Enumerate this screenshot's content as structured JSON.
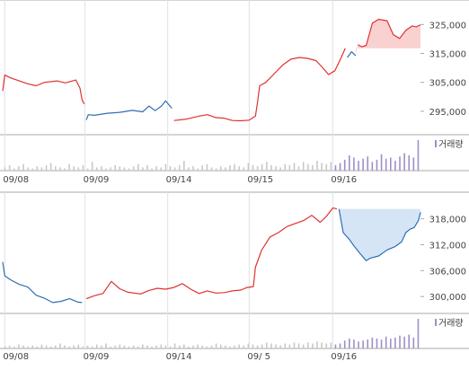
{
  "colors": {
    "up": "#e03131",
    "down": "#2f6fb3",
    "up_fill": "#f9c9c9",
    "down_fill": "#cfe0f5",
    "volume": "#c8c8c8",
    "volume_recent": "#9f8fc6",
    "grid": "#e2e2e2",
    "frame": "#aaaaaa"
  },
  "chart_data": [
    {
      "type": "line",
      "x_ticks": [
        "09/08",
        "09/09",
        "09/14",
        "09/15",
        "09/16"
      ],
      "y_ticks": [
        "325,000",
        "315,000",
        "305,000",
        "295,000"
      ],
      "y_tick_values": [
        325000,
        315000,
        305000,
        295000
      ],
      "ylim": [
        287500,
        331000
      ],
      "volume_label": "거래량",
      "series": [
        {
          "color": "up",
          "points": [
            [
              0.0,
              302000
            ],
            [
              0.005,
              307500
            ],
            [
              0.02,
              306500
            ],
            [
              0.04,
              305500
            ],
            [
              0.06,
              304500
            ],
            [
              0.08,
              303800
            ],
            [
              0.1,
              305000
            ],
            [
              0.13,
              305500
            ],
            [
              0.15,
              304800
            ],
            [
              0.175,
              305800
            ],
            [
              0.185,
              303000
            ],
            [
              0.19,
              299000
            ],
            [
              0.195,
              297500
            ]
          ]
        },
        {
          "color": "down",
          "points": [
            [
              0.2,
              292000
            ],
            [
              0.205,
              293800
            ],
            [
              0.22,
              293600
            ],
            [
              0.25,
              294300
            ],
            [
              0.28,
              294600
            ],
            [
              0.31,
              295300
            ],
            [
              0.335,
              294800
            ],
            [
              0.35,
              296800
            ],
            [
              0.365,
              295200
            ],
            [
              0.38,
              296800
            ],
            [
              0.39,
              298600
            ],
            [
              0.405,
              296000
            ]
          ]
        },
        {
          "color": "up",
          "points": [
            [
              0.41,
              291800
            ],
            [
              0.44,
              292300
            ],
            [
              0.47,
              293300
            ],
            [
              0.49,
              293800
            ],
            [
              0.51,
              292800
            ],
            [
              0.53,
              292600
            ],
            [
              0.55,
              291800
            ],
            [
              0.57,
              291700
            ],
            [
              0.59,
              291900
            ],
            [
              0.605,
              293300
            ],
            [
              0.61,
              298000
            ],
            [
              0.615,
              303800
            ],
            [
              0.63,
              305000
            ],
            [
              0.65,
              308000
            ],
            [
              0.67,
              311000
            ],
            [
              0.69,
              313000
            ],
            [
              0.71,
              313600
            ],
            [
              0.73,
              313300
            ],
            [
              0.75,
              312500
            ],
            [
              0.765,
              310200
            ],
            [
              0.78,
              307700
            ],
            [
              0.795,
              309000
            ],
            [
              0.81,
              313500
            ],
            [
              0.82,
              316800
            ]
          ]
        },
        {
          "color": "down",
          "points": [
            [
              0.825,
              313600
            ],
            [
              0.835,
              315600
            ],
            [
              0.845,
              314200
            ]
          ]
        },
        {
          "color": "up",
          "points": [
            [
              0.85,
              318000
            ],
            [
              0.86,
              317300
            ],
            [
              0.87,
              317800
            ],
            [
              0.885,
              325500
            ],
            [
              0.9,
              326800
            ],
            [
              0.92,
              326300
            ],
            [
              0.935,
              321500
            ],
            [
              0.95,
              320200
            ],
            [
              0.965,
              323000
            ],
            [
              0.98,
              324500
            ],
            [
              0.99,
              324200
            ],
            [
              1.0,
              324900
            ]
          ]
        }
      ],
      "shade": {
        "color": "up_fill",
        "from_x": 0.838,
        "base_y": 316800
      },
      "volume": [
        3,
        5,
        2,
        4,
        6,
        3,
        2,
        4,
        3,
        5,
        7,
        4,
        3,
        2,
        6,
        4,
        3,
        5,
        2,
        8,
        3,
        4,
        2,
        3,
        5,
        4,
        3,
        2,
        4,
        6,
        3,
        5,
        2,
        4,
        3,
        6,
        4,
        3,
        5,
        9,
        3,
        4,
        2,
        5,
        6,
        3,
        2,
        4,
        3,
        5,
        6,
        4,
        3,
        7,
        5,
        4,
        6,
        8,
        5,
        4,
        3,
        6,
        5,
        7,
        4,
        8,
        6,
        5,
        9,
        7,
        6,
        8,
        5,
        7,
        10,
        14,
        12,
        9,
        11,
        13,
        8,
        10,
        15,
        11,
        12,
        9,
        13,
        16,
        14,
        12,
        28
      ]
    },
    {
      "type": "line",
      "x_ticks": [
        "09/08",
        "09/09",
        "09/14",
        "09/ 5",
        "09/16"
      ],
      "y_ticks": [
        "318,000",
        "312,000",
        "306,000",
        "300,000"
      ],
      "y_tick_values": [
        318000,
        312000,
        306000,
        300000
      ],
      "ylim": [
        296500,
        322500
      ],
      "volume_label": "거래량",
      "series": [
        {
          "color": "down",
          "points": [
            [
              0.0,
              308000
            ],
            [
              0.005,
              304800
            ],
            [
              0.02,
              303800
            ],
            [
              0.04,
              302800
            ],
            [
              0.06,
              302200
            ],
            [
              0.08,
              300300
            ],
            [
              0.1,
              299600
            ],
            [
              0.12,
              298600
            ],
            [
              0.14,
              298900
            ],
            [
              0.16,
              299500
            ],
            [
              0.18,
              298700
            ],
            [
              0.19,
              298600
            ]
          ]
        },
        {
          "color": "up",
          "points": [
            [
              0.2,
              299500
            ],
            [
              0.22,
              300200
            ],
            [
              0.24,
              300700
            ],
            [
              0.26,
              303500
            ],
            [
              0.28,
              301800
            ],
            [
              0.3,
              301000
            ],
            [
              0.33,
              300600
            ],
            [
              0.35,
              301400
            ],
            [
              0.37,
              301900
            ],
            [
              0.39,
              301700
            ],
            [
              0.41,
              302100
            ],
            [
              0.43,
              303000
            ],
            [
              0.45,
              301700
            ],
            [
              0.47,
              300700
            ],
            [
              0.49,
              301300
            ],
            [
              0.51,
              300800
            ],
            [
              0.53,
              300900
            ],
            [
              0.55,
              301300
            ],
            [
              0.57,
              301500
            ],
            [
              0.585,
              302100
            ],
            [
              0.6,
              302300
            ],
            [
              0.605,
              306800
            ],
            [
              0.62,
              310800
            ],
            [
              0.64,
              313800
            ],
            [
              0.66,
              314800
            ],
            [
              0.68,
              316200
            ],
            [
              0.7,
              316900
            ],
            [
              0.72,
              317600
            ],
            [
              0.74,
              318800
            ],
            [
              0.76,
              317200
            ],
            [
              0.775,
              318600
            ],
            [
              0.79,
              320500
            ],
            [
              0.8,
              320300
            ]
          ]
        },
        {
          "color": "down",
          "points": [
            [
              0.805,
              320300
            ],
            [
              0.815,
              314800
            ],
            [
              0.83,
              313200
            ],
            [
              0.84,
              311800
            ],
            [
              0.855,
              310000
            ],
            [
              0.87,
              308300
            ],
            [
              0.88,
              308900
            ],
            [
              0.9,
              309400
            ],
            [
              0.92,
              310800
            ],
            [
              0.94,
              311600
            ],
            [
              0.955,
              312700
            ],
            [
              0.965,
              314800
            ],
            [
              0.975,
              315600
            ],
            [
              0.985,
              316000
            ],
            [
              0.995,
              317600
            ],
            [
              1.0,
              319500
            ]
          ]
        }
      ],
      "shade": {
        "color": "down_fill",
        "from_x": 0.805,
        "base_y": 320300
      },
      "volume": [
        2,
        3,
        2,
        4,
        3,
        2,
        3,
        2,
        4,
        3,
        2,
        3,
        5,
        3,
        2,
        3,
        4,
        2,
        3,
        2,
        4,
        3,
        5,
        2,
        3,
        4,
        3,
        2,
        3,
        2,
        4,
        3,
        2,
        3,
        4,
        3,
        2,
        5,
        3,
        4,
        2,
        3,
        4,
        3,
        2,
        3,
        5,
        4,
        3,
        2,
        3,
        4,
        3,
        5,
        4,
        3,
        4,
        6,
        5,
        4,
        3,
        5,
        4,
        6,
        5,
        4,
        6,
        5,
        7,
        6,
        5,
        6,
        4,
        5,
        8,
        10,
        9,
        7,
        8,
        9,
        11,
        10,
        9,
        12,
        10,
        11,
        13,
        12,
        14,
        11,
        30
      ]
    }
  ]
}
